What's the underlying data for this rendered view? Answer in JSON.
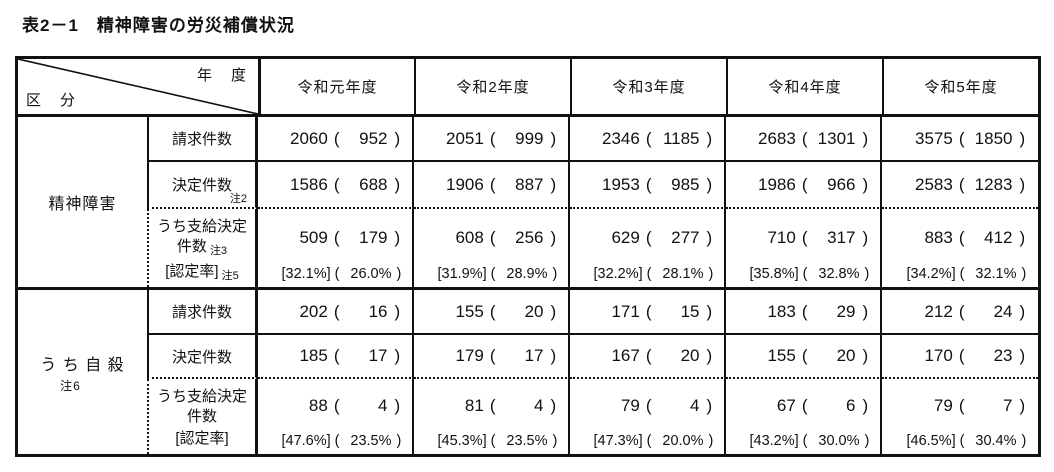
{
  "title": "表2－1　精神障害の労災補償状況",
  "header": {
    "axis_top": "年　度",
    "axis_bottom": "区　分",
    "years": [
      "令和元年度",
      "令和2年度",
      "令和3年度",
      "令和4年度",
      "令和5年度"
    ]
  },
  "groups": [
    {
      "label": "精神障害",
      "label_note": "",
      "rows": [
        {
          "kind": "simple",
          "label": "請求件数",
          "label_note": "",
          "values": [
            [
              "2060",
              "952"
            ],
            [
              "2051",
              "999"
            ],
            [
              "2346",
              "1185"
            ],
            [
              "2683",
              "1301"
            ],
            [
              "3575",
              "1850"
            ]
          ]
        },
        {
          "kind": "simple",
          "label": "決定件数",
          "label_note": "注2",
          "values": [
            [
              "1586",
              "688"
            ],
            [
              "1906",
              "887"
            ],
            [
              "1953",
              "985"
            ],
            [
              "1986",
              "966"
            ],
            [
              "2583",
              "1283"
            ]
          ]
        },
        {
          "kind": "with_rate",
          "label_line1": "うち支給決定",
          "label_line2": "件数",
          "label_note": "注3",
          "rate_label": "[認定率]",
          "rate_note": "注5",
          "values": [
            [
              "509",
              "179"
            ],
            [
              "608",
              "256"
            ],
            [
              "629",
              "277"
            ],
            [
              "710",
              "317"
            ],
            [
              "883",
              "412"
            ]
          ],
          "rates": [
            [
              "[32.1%]",
              "26.0%"
            ],
            [
              "[31.9%]",
              "28.9%"
            ],
            [
              "[32.2%]",
              "28.1%"
            ],
            [
              "[35.8%]",
              "32.8%"
            ],
            [
              "[34.2%]",
              "32.1%"
            ]
          ]
        }
      ]
    },
    {
      "label": "う ち 自 殺",
      "label_note": "注6",
      "rows": [
        {
          "kind": "simple",
          "label": "請求件数",
          "label_note": "",
          "values": [
            [
              "202",
              "16"
            ],
            [
              "155",
              "20"
            ],
            [
              "171",
              "15"
            ],
            [
              "183",
              "29"
            ],
            [
              "212",
              "24"
            ]
          ]
        },
        {
          "kind": "simple",
          "label": "決定件数",
          "label_note": "",
          "values": [
            [
              "185",
              "17"
            ],
            [
              "179",
              "17"
            ],
            [
              "167",
              "20"
            ],
            [
              "155",
              "20"
            ],
            [
              "170",
              "23"
            ]
          ]
        },
        {
          "kind": "with_rate",
          "label_line1": "うち支給決定",
          "label_line2": "件数",
          "label_note": "",
          "rate_label": "[認定率]",
          "rate_note": "",
          "values": [
            [
              "88",
              "4"
            ],
            [
              "81",
              "4"
            ],
            [
              "79",
              "4"
            ],
            [
              "67",
              "6"
            ],
            [
              "79",
              "7"
            ]
          ],
          "rates": [
            [
              "[47.6%]",
              "23.5%"
            ],
            [
              "[45.3%]",
              "23.5%"
            ],
            [
              "[47.3%]",
              "20.0%"
            ],
            [
              "[43.2%]",
              "30.0%"
            ],
            [
              "[46.5%]",
              "30.4%"
            ]
          ]
        }
      ]
    }
  ]
}
